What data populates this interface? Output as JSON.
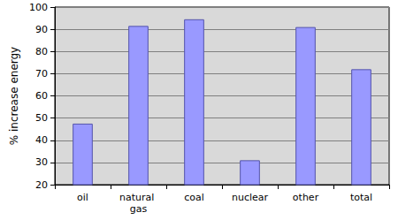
{
  "chart_data": {
    "type": "bar",
    "y_label": "% increase energy",
    "categories": [
      "oil",
      "natural gas",
      "coal",
      "nuclear",
      "other",
      "total"
    ],
    "values": [
      47.5,
      91.5,
      94.5,
      31,
      91,
      72
    ],
    "color": "#9999ff",
    "ylim": [
      20,
      100
    ],
    "yticks": [
      20,
      30,
      40,
      50,
      60,
      70,
      80,
      90,
      100
    ],
    "grid": true
  }
}
